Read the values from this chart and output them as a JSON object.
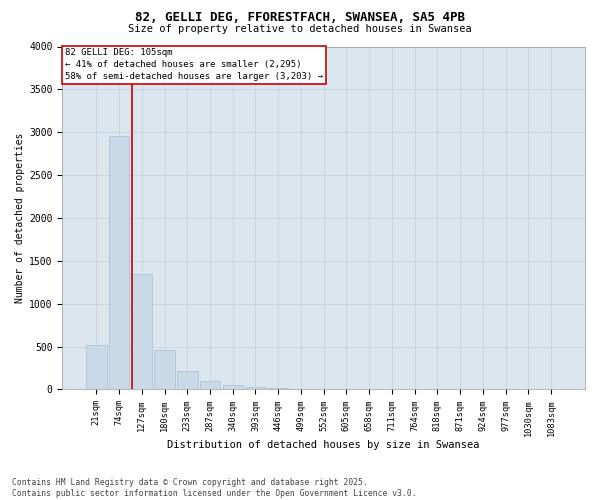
{
  "title_line1": "82, GELLI DEG, FFORESTFACH, SWANSEA, SA5 4PB",
  "title_line2": "Size of property relative to detached houses in Swansea",
  "xlabel": "Distribution of detached houses by size in Swansea",
  "ylabel": "Number of detached properties",
  "footer_line1": "Contains HM Land Registry data © Crown copyright and database right 2025.",
  "footer_line2": "Contains public sector information licensed under the Open Government Licence v3.0.",
  "bar_color": "#c9d9e8",
  "bar_edge_color": "#a8bece",
  "grid_color": "#c8d4dc",
  "bg_color": "#dce6ef",
  "vline_color": "#cc0000",
  "annotation_box_color": "#cc0000",
  "categories": [
    "21sqm",
    "74sqm",
    "127sqm",
    "180sqm",
    "233sqm",
    "287sqm",
    "340sqm",
    "393sqm",
    "446sqm",
    "499sqm",
    "552sqm",
    "605sqm",
    "658sqm",
    "711sqm",
    "764sqm",
    "818sqm",
    "871sqm",
    "924sqm",
    "977sqm",
    "1030sqm",
    "1083sqm"
  ],
  "values": [
    520,
    2960,
    1350,
    460,
    220,
    100,
    55,
    30,
    15,
    5,
    2,
    1,
    0,
    0,
    0,
    0,
    0,
    0,
    0,
    0,
    0
  ],
  "ylim": [
    0,
    4000
  ],
  "yticks": [
    0,
    500,
    1000,
    1500,
    2000,
    2500,
    3000,
    3500,
    4000
  ],
  "vline_x_index": 1.575,
  "annotation_text": "82 GELLI DEG: 105sqm\n← 41% of detached houses are smaller (2,295)\n58% of semi-detached houses are larger (3,203) →"
}
